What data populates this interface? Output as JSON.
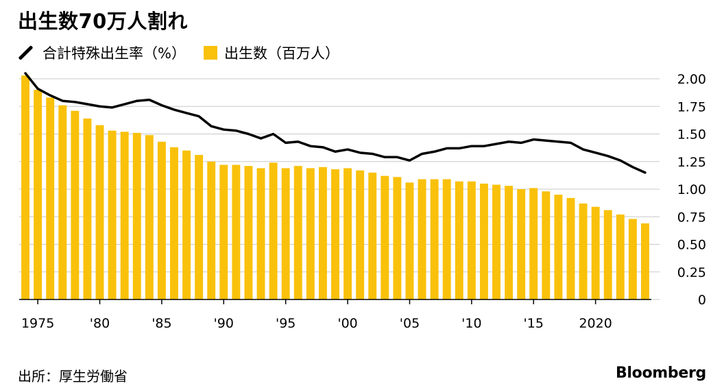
{
  "title": "出生数70万人割れ",
  "legend": {
    "line_label": "合計特殊出生率（%）",
    "bar_label": "出生数（百万人）"
  },
  "source": "出所：厚生労働省",
  "brand": "Bloomberg",
  "colors": {
    "bar": "#f9c10b",
    "line": "#000000",
    "grid": "#c8c8c8"
  },
  "chart_data": {
    "type": "bar",
    "years": [
      1974,
      1975,
      1976,
      1977,
      1978,
      1979,
      1980,
      1981,
      1982,
      1983,
      1984,
      1985,
      1986,
      1987,
      1988,
      1989,
      1990,
      1991,
      1992,
      1993,
      1994,
      1995,
      1996,
      1997,
      1998,
      1999,
      2000,
      2001,
      2002,
      2003,
      2004,
      2005,
      2006,
      2007,
      2008,
      2009,
      2010,
      2011,
      2012,
      2013,
      2014,
      2015,
      2016,
      2017,
      2018,
      2019,
      2020,
      2021,
      2022,
      2023,
      2024
    ],
    "series": [
      {
        "name": "出生数（百万人）",
        "type": "bar",
        "values": [
          2.03,
          1.9,
          1.83,
          1.76,
          1.71,
          1.64,
          1.58,
          1.53,
          1.52,
          1.51,
          1.49,
          1.43,
          1.38,
          1.35,
          1.31,
          1.25,
          1.22,
          1.22,
          1.21,
          1.19,
          1.24,
          1.19,
          1.21,
          1.19,
          1.2,
          1.18,
          1.19,
          1.17,
          1.15,
          1.12,
          1.11,
          1.06,
          1.09,
          1.09,
          1.09,
          1.07,
          1.07,
          1.05,
          1.04,
          1.03,
          1.0,
          1.01,
          0.98,
          0.95,
          0.92,
          0.87,
          0.84,
          0.81,
          0.77,
          0.73,
          0.69
        ]
      },
      {
        "name": "合計特殊出生率（%）",
        "type": "line",
        "values": [
          2.05,
          1.91,
          1.85,
          1.8,
          1.79,
          1.77,
          1.75,
          1.74,
          1.77,
          1.8,
          1.81,
          1.76,
          1.72,
          1.69,
          1.66,
          1.57,
          1.54,
          1.53,
          1.5,
          1.46,
          1.5,
          1.42,
          1.43,
          1.39,
          1.38,
          1.34,
          1.36,
          1.33,
          1.32,
          1.29,
          1.29,
          1.26,
          1.32,
          1.34,
          1.37,
          1.37,
          1.39,
          1.39,
          1.41,
          1.43,
          1.42,
          1.45,
          1.44,
          1.43,
          1.42,
          1.36,
          1.33,
          1.3,
          1.26,
          1.2,
          1.15
        ]
      }
    ],
    "y_ticks": [
      "2.00",
      "1.75",
      "1.50",
      "1.25",
      "1.00",
      "0.75",
      "0.50",
      "0.25",
      "0"
    ],
    "y_tick_values": [
      2.0,
      1.75,
      1.5,
      1.25,
      1.0,
      0.75,
      0.5,
      0.25,
      0
    ],
    "ylim": [
      0,
      2.0
    ],
    "x_ticks": [
      {
        "year": 1975,
        "label": "1975"
      },
      {
        "year": 1980,
        "label": "'80"
      },
      {
        "year": 1985,
        "label": "'85"
      },
      {
        "year": 1990,
        "label": "'90"
      },
      {
        "year": 1995,
        "label": "'95"
      },
      {
        "year": 2000,
        "label": "'00"
      },
      {
        "year": 2005,
        "label": "'05"
      },
      {
        "year": 2010,
        "label": "'10"
      },
      {
        "year": 2015,
        "label": "'15"
      },
      {
        "year": 2020,
        "label": "2020"
      }
    ],
    "grid": true,
    "y_axis_position": "right"
  }
}
